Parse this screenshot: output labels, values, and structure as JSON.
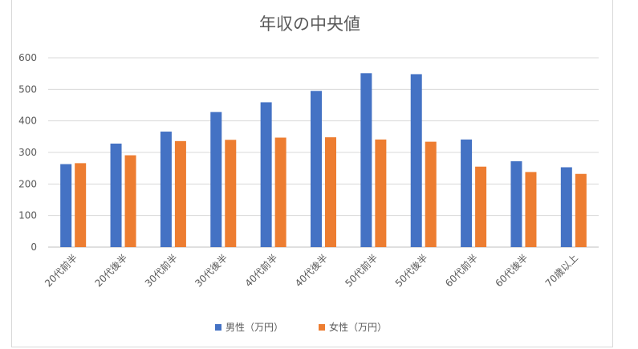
{
  "chart_data": {
    "type": "bar",
    "title": "年収の中央値",
    "xlabel": "",
    "ylabel": "",
    "categories": [
      "20代前半",
      "20代後半",
      "30代前半",
      "30代後半",
      "40代前半",
      "40代後半",
      "50代前半",
      "50代後半",
      "60代前半",
      "60代後半",
      "70歳以上"
    ],
    "series": [
      {
        "name": "男性（万円）",
        "color": "#4472c4",
        "values": [
          263,
          328,
          366,
          428,
          459,
          495,
          551,
          548,
          341,
          272,
          253
        ]
      },
      {
        "name": "女性（万円）",
        "color": "#ed7d31",
        "values": [
          266,
          291,
          336,
          340,
          347,
          348,
          341,
          334,
          255,
          238,
          232
        ]
      }
    ],
    "ylim": [
      0,
      600
    ],
    "yticks": [
      "0",
      "100",
      "200",
      "300",
      "400",
      "500",
      "600"
    ],
    "grid": true,
    "legend_position": "bottom"
  }
}
